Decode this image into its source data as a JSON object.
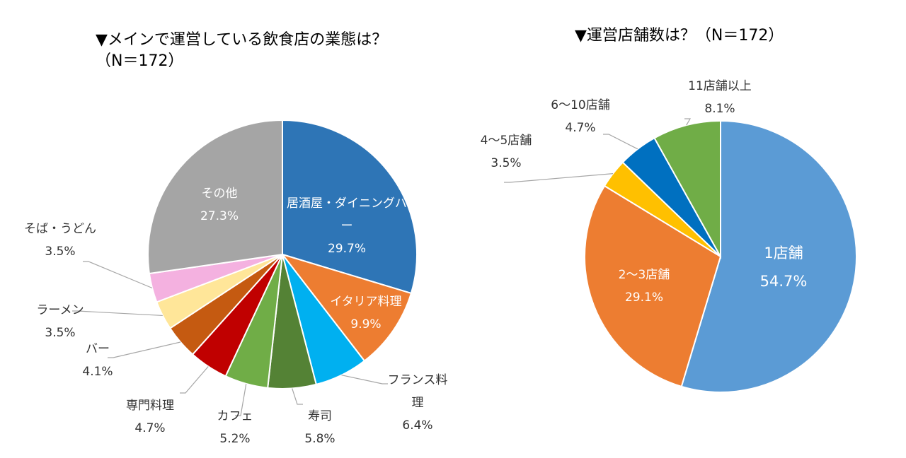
{
  "chart_data": [
    {
      "type": "pie",
      "title": "▼メインで運営している飲食店の業態は？（N＝172）",
      "categories": [
        "居酒屋・ダイニングバー",
        "イタリア料理",
        "フランス料理",
        "寿司",
        "カフェ",
        "専門料理",
        "バー",
        "ラーメン",
        "そば・うどん",
        "その他"
      ],
      "values": [
        29.7,
        9.9,
        6.4,
        5.8,
        5.2,
        4.7,
        4.1,
        3.5,
        3.5,
        27.3
      ],
      "value_labels": [
        "29.7%",
        "9.9%",
        "6.4%",
        "5.8%",
        "5.2%",
        "4.7%",
        "4.1%",
        "3.5%",
        "3.5%",
        "27.3%"
      ],
      "colors": [
        "#2e75b6",
        "#ed7d31",
        "#00b0f0",
        "#548235",
        "#70ad47",
        "#c00000",
        "#c55a11",
        "#ffe699",
        "#f4b1e0",
        "#a5a5a5"
      ]
    },
    {
      "type": "pie",
      "title": "▼運営店舗数は？（N＝172）",
      "categories": [
        "1店舗",
        "2〜3店舗",
        "4〜5店舗",
        "6〜10店舗",
        "11店舗以上"
      ],
      "values": [
        54.7,
        29.1,
        3.5,
        4.7,
        8.1
      ],
      "value_labels": [
        "54.7%",
        "29.1%",
        "3.5%",
        "4.7%",
        "8.1%"
      ],
      "colors": [
        "#5b9bd5",
        "#ed7d31",
        "#ffc000",
        "#0070c0",
        "#70ad47"
      ]
    }
  ]
}
